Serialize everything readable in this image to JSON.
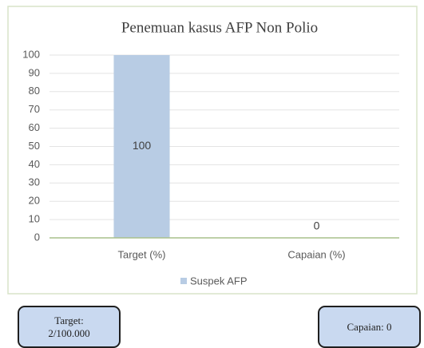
{
  "chart_data": {
    "type": "bar",
    "title": "Penemuan kasus AFP Non Polio",
    "categories": [
      "Target (%)",
      "Capaian (%)"
    ],
    "series": [
      {
        "name": "Suspek AFP",
        "color": "#b8cce4",
        "values": [
          100,
          0
        ]
      }
    ],
    "ylim": [
      0,
      100
    ],
    "yticks": [
      0,
      10,
      20,
      30,
      40,
      50,
      60,
      70,
      80,
      90,
      100
    ],
    "grid": true,
    "legend": "bottom"
  },
  "boxes": {
    "target_label": "Target:",
    "target_value": "2/100.000",
    "capaian": "Capaian: 0"
  }
}
